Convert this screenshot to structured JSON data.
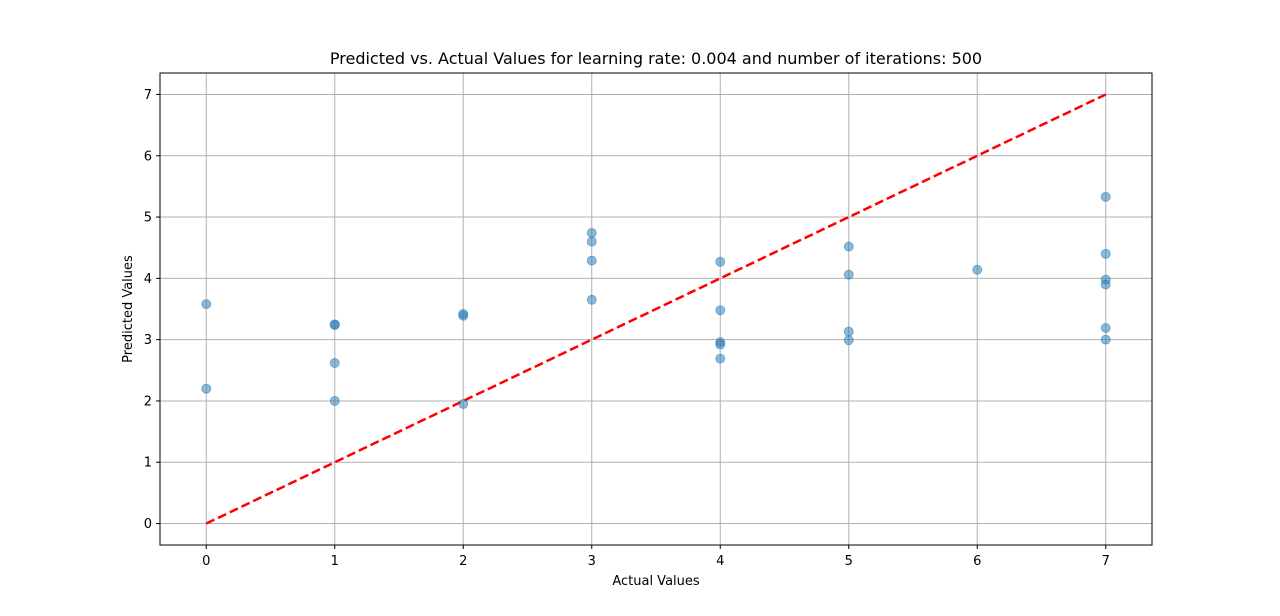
{
  "chart_data": {
    "type": "scatter",
    "title": "Predicted vs. Actual Values for learning rate: 0.004 and number of iterations: 500",
    "xlabel": "Actual Values",
    "ylabel": "Predicted Values",
    "xlim": [
      -0.36,
      7.36
    ],
    "ylim": [
      -0.35,
      7.35
    ],
    "xticks": [
      "0",
      "1",
      "2",
      "3",
      "4",
      "5",
      "6",
      "7"
    ],
    "yticks": [
      "0",
      "1",
      "2",
      "3",
      "4",
      "5",
      "6",
      "7"
    ],
    "grid": true,
    "legend": "none",
    "series": [
      {
        "kind": "points",
        "color": "#1f77b4",
        "alpha": 0.5,
        "points": [
          [
            0,
            3.58
          ],
          [
            0,
            2.2
          ],
          [
            1,
            3.25
          ],
          [
            1,
            3.24
          ],
          [
            1,
            2.62
          ],
          [
            1,
            2.0
          ],
          [
            2,
            3.42
          ],
          [
            2,
            3.39
          ],
          [
            2,
            1.95
          ],
          [
            3,
            4.74
          ],
          [
            3,
            4.6
          ],
          [
            3,
            4.29
          ],
          [
            3,
            3.65
          ],
          [
            4,
            4.27
          ],
          [
            4,
            3.48
          ],
          [
            4,
            2.96
          ],
          [
            4,
            2.92
          ],
          [
            4,
            2.69
          ],
          [
            5,
            4.52
          ],
          [
            5,
            4.06
          ],
          [
            5,
            3.13
          ],
          [
            5,
            2.99
          ],
          [
            6,
            4.14
          ],
          [
            7,
            5.33
          ],
          [
            7,
            4.4
          ],
          [
            7,
            3.98
          ],
          [
            7,
            3.9
          ],
          [
            7,
            3.19
          ],
          [
            7,
            3.0
          ]
        ]
      },
      {
        "kind": "line",
        "style": "dashed",
        "color": "#ff0000",
        "x": [
          0,
          7
        ],
        "y": [
          0,
          7
        ]
      }
    ]
  }
}
